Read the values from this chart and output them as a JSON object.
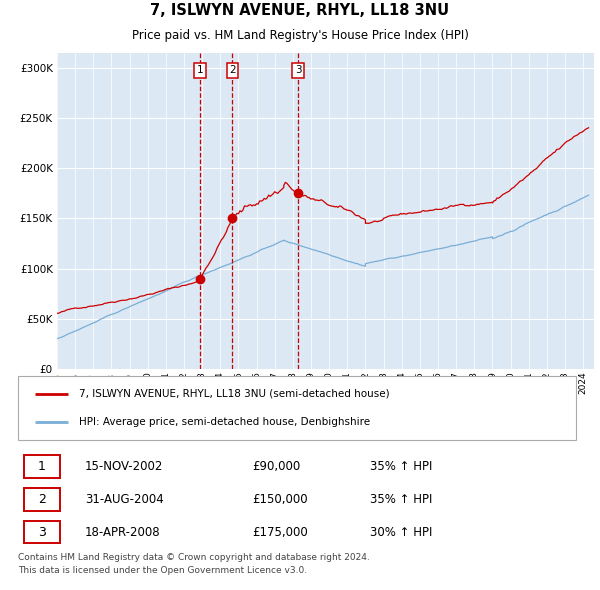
{
  "title": "7, ISLWYN AVENUE, RHYL, LL18 3NU",
  "subtitle": "Price paid vs. HM Land Registry's House Price Index (HPI)",
  "legend_line1": "7, ISLWYN AVENUE, RHYL, LL18 3NU (semi-detached house)",
  "legend_line2": "HPI: Average price, semi-detached house, Denbighshire",
  "footer": "Contains HM Land Registry data © Crown copyright and database right 2024.\nThis data is licensed under the Open Government Licence v3.0.",
  "red_color": "#cc0000",
  "blue_color": "#7aaed6",
  "bg_color": "#dce9f5",
  "grid_color": "#ffffff",
  "transactions": [
    {
      "num": 1,
      "date_num": 2002.88,
      "price": 90000,
      "label": "15-NOV-2002",
      "pct": "35%"
    },
    {
      "num": 2,
      "date_num": 2004.67,
      "price": 150000,
      "label": "31-AUG-2004",
      "pct": "35%"
    },
    {
      "num": 3,
      "date_num": 2008.3,
      "price": 175000,
      "label": "18-APR-2008",
      "pct": "30%"
    }
  ],
  "yticks": [
    0,
    50000,
    100000,
    150000,
    200000,
    250000,
    300000
  ],
  "ylim": [
    0,
    315000
  ],
  "xlim_start": 1995.0,
  "xlim_end": 2024.6
}
